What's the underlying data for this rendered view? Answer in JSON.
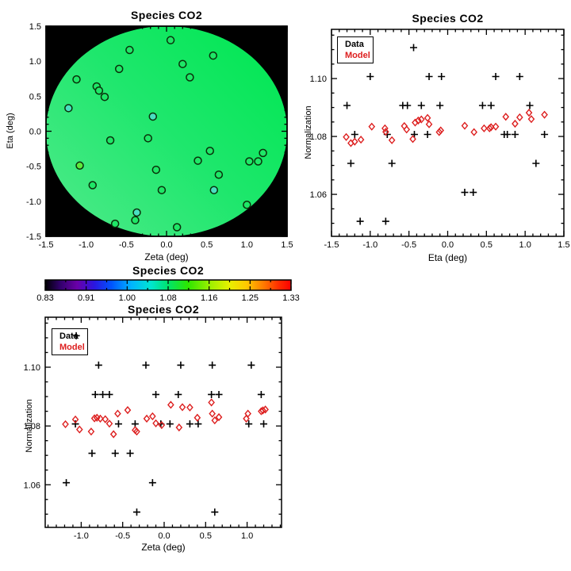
{
  "figure": {
    "background": "#ffffff"
  },
  "colors": {
    "axis": "#000000",
    "data_marker": "#000000",
    "model_marker": "#dd1f1f",
    "disk_outside": "#000000",
    "disk_gradient": [
      [
        "0%",
        "#4dea89"
      ],
      [
        "50%",
        "#1fe76d"
      ],
      [
        "100%",
        "#00e752"
      ]
    ],
    "circle_outline": "#0a300a",
    "circle_fills": {
      "green": "#1ee767",
      "cyan": "#49dfc2",
      "lime": "#5de83b"
    }
  },
  "chart_data": [
    {
      "id": "eta-vs-zeta-map",
      "type": "scatter",
      "title": "Species CO2",
      "xlabel": "Zeta (deg)",
      "ylabel": "Eta (deg)",
      "xlim": [
        -1.5,
        1.5
      ],
      "ylim": [
        -1.5,
        1.5
      ],
      "xminor": 0.1,
      "yminor": 0.1,
      "xticks": [
        {
          "v": -1.5,
          "label": "-1.5"
        },
        {
          "v": -1.0,
          "label": "-1.0"
        },
        {
          "v": -0.5,
          "label": "-0.5"
        },
        {
          "v": 0.0,
          "label": "0.0"
        },
        {
          "v": 0.5,
          "label": "0.5"
        },
        {
          "v": 1.0,
          "label": "1.0"
        },
        {
          "v": 1.5,
          "label": "1.5"
        }
      ],
      "yticks": [
        {
          "v": 1.5,
          "label": "1.5"
        },
        {
          "v": 1.0,
          "label": "1.0"
        },
        {
          "v": 0.5,
          "label": "0.5"
        },
        {
          "v": 0.0,
          "label": "0.0"
        },
        {
          "v": -0.5,
          "label": "-0.5"
        },
        {
          "v": -1.0,
          "label": "-1.0"
        },
        {
          "v": -1.5,
          "label": "-1.5"
        }
      ],
      "background_note": "black square with circular field of view filled by colormap value ~1.08 (green)",
      "points": [
        {
          "x": 0.05,
          "y": 1.3,
          "c": "green"
        },
        {
          "x": -0.46,
          "y": 1.16,
          "c": "green"
        },
        {
          "x": 0.58,
          "y": 1.08,
          "c": "green"
        },
        {
          "x": 0.2,
          "y": 0.96,
          "c": "green"
        },
        {
          "x": -0.59,
          "y": 0.89,
          "c": "green"
        },
        {
          "x": 0.29,
          "y": 0.77,
          "c": "green"
        },
        {
          "x": -1.12,
          "y": 0.74,
          "c": "green"
        },
        {
          "x": -0.87,
          "y": 0.64,
          "c": "green"
        },
        {
          "x": -0.84,
          "y": 0.58,
          "c": "green"
        },
        {
          "x": -0.77,
          "y": 0.49,
          "c": "green"
        },
        {
          "x": -1.22,
          "y": 0.33,
          "c": "cyan"
        },
        {
          "x": -0.17,
          "y": 0.21,
          "c": "cyan"
        },
        {
          "x": -0.23,
          "y": -0.1,
          "c": "green"
        },
        {
          "x": -0.7,
          "y": -0.13,
          "c": "green"
        },
        {
          "x": 0.54,
          "y": -0.28,
          "c": "green"
        },
        {
          "x": 1.2,
          "y": -0.31,
          "c": "green"
        },
        {
          "x": 1.03,
          "y": -0.43,
          "c": "green"
        },
        {
          "x": 1.14,
          "y": -0.43,
          "c": "green"
        },
        {
          "x": -1.08,
          "y": -0.49,
          "c": "lime"
        },
        {
          "x": -0.13,
          "y": -0.55,
          "c": "green"
        },
        {
          "x": 0.39,
          "y": -0.42,
          "c": "green"
        },
        {
          "x": 0.65,
          "y": -0.62,
          "c": "green"
        },
        {
          "x": -0.92,
          "y": -0.77,
          "c": "green"
        },
        {
          "x": -0.06,
          "y": -0.84,
          "c": "green"
        },
        {
          "x": 0.59,
          "y": -0.84,
          "c": "cyan"
        },
        {
          "x": 1.0,
          "y": -1.05,
          "c": "green"
        },
        {
          "x": -0.37,
          "y": -1.16,
          "c": "cyan"
        },
        {
          "x": -0.39,
          "y": -1.27,
          "c": "green"
        },
        {
          "x": -0.64,
          "y": -1.32,
          "c": "green"
        },
        {
          "x": 0.13,
          "y": -1.37,
          "c": "green"
        }
      ]
    },
    {
      "id": "normalization-vs-eta",
      "type": "scatter",
      "title": "Species CO2",
      "xlabel": "Eta (deg)",
      "ylabel": "Normalization",
      "xlim": [
        -1.5,
        1.5
      ],
      "ylim": [
        1.0455,
        1.117
      ],
      "xminor": 0.1,
      "yminor": 0.005,
      "xticks": [
        {
          "v": -1.5,
          "label": "-1.5"
        },
        {
          "v": -1.0,
          "label": "-1.0"
        },
        {
          "v": -0.5,
          "label": "-0.5"
        },
        {
          "v": 0.0,
          "label": "0.0"
        },
        {
          "v": 0.5,
          "label": "0.5"
        },
        {
          "v": 1.0,
          "label": "1.0"
        },
        {
          "v": 1.5,
          "label": "1.5"
        }
      ],
      "yticks": [
        {
          "v": 1.1,
          "label": "1.10"
        },
        {
          "v": 1.08,
          "label": "1.08"
        },
        {
          "v": 1.06,
          "label": "1.06"
        }
      ],
      "legend": [
        {
          "label": "Data",
          "color": "#000000"
        },
        {
          "label": "Model",
          "color": "#dd1f1f"
        }
      ],
      "series": [
        {
          "name": "Data",
          "marker": "plus",
          "color": "#000000",
          "points": [
            [
              -0.44,
              1.1107
            ],
            [
              -1.0,
              1.1007
            ],
            [
              -0.24,
              1.1007
            ],
            [
              -0.08,
              1.1007
            ],
            [
              0.62,
              1.1007
            ],
            [
              0.93,
              1.1007
            ],
            [
              -1.3,
              1.0907
            ],
            [
              -0.58,
              1.0907
            ],
            [
              -0.52,
              1.0907
            ],
            [
              -0.34,
              1.0907
            ],
            [
              -0.1,
              1.0907
            ],
            [
              0.45,
              1.0907
            ],
            [
              0.56,
              1.0907
            ],
            [
              1.06,
              1.0907
            ],
            [
              -1.2,
              1.0807
            ],
            [
              -0.78,
              1.0807
            ],
            [
              -0.43,
              1.0807
            ],
            [
              -0.26,
              1.0807
            ],
            [
              0.73,
              1.0807
            ],
            [
              0.77,
              1.0807
            ],
            [
              0.87,
              1.0807
            ],
            [
              1.25,
              1.0807
            ],
            [
              -1.25,
              1.0707
            ],
            [
              -0.72,
              1.0707
            ],
            [
              1.14,
              1.0707
            ],
            [
              0.22,
              1.0607
            ],
            [
              0.33,
              1.0607
            ],
            [
              -1.13,
              1.0507
            ],
            [
              -0.8,
              1.0507
            ]
          ]
        },
        {
          "name": "Model",
          "marker": "diamond",
          "color": "#dd1f1f",
          "points": [
            [
              -1.31,
              1.0798
            ],
            [
              -1.25,
              1.0777
            ],
            [
              -1.2,
              1.0782
            ],
            [
              -1.12,
              1.0789
            ],
            [
              -0.98,
              1.0834
            ],
            [
              -0.81,
              1.0828
            ],
            [
              -0.8,
              1.0816
            ],
            [
              -0.72,
              1.0787
            ],
            [
              -0.56,
              1.0836
            ],
            [
              -0.53,
              1.0824
            ],
            [
              -0.45,
              1.0791
            ],
            [
              -0.42,
              1.0848
            ],
            [
              -0.38,
              1.0855
            ],
            [
              -0.34,
              1.0859
            ],
            [
              -0.26,
              1.0864
            ],
            [
              -0.24,
              1.0842
            ],
            [
              -0.11,
              1.0815
            ],
            [
              -0.09,
              1.0821
            ],
            [
              0.22,
              1.0837
            ],
            [
              0.34,
              1.0815
            ],
            [
              0.47,
              1.0828
            ],
            [
              0.54,
              1.0828
            ],
            [
              0.56,
              1.0832
            ],
            [
              0.62,
              1.0834
            ],
            [
              0.75,
              1.0868
            ],
            [
              0.87,
              1.0844
            ],
            [
              0.93,
              1.0866
            ],
            [
              1.05,
              1.0882
            ],
            [
              1.08,
              1.086
            ],
            [
              1.25,
              1.0875
            ]
          ]
        }
      ]
    },
    {
      "id": "colorbar",
      "type": "colorbar",
      "title": "Species CO2",
      "tick_labels": [
        "0.83",
        "0.91",
        "1.00",
        "1.08",
        "1.16",
        "1.25",
        "1.33"
      ],
      "range": [
        0.83,
        1.33
      ],
      "gradient": [
        [
          "0%",
          "#000002"
        ],
        [
          "6%",
          "#30006a"
        ],
        [
          "13%",
          "#6a00a8"
        ],
        [
          "20%",
          "#2a16e0"
        ],
        [
          "27%",
          "#0055ff"
        ],
        [
          "35%",
          "#00b4ff"
        ],
        [
          "43%",
          "#00e6d0"
        ],
        [
          "50%",
          "#00e36b"
        ],
        [
          "58%",
          "#2ce600"
        ],
        [
          "67%",
          "#9cf000"
        ],
        [
          "75%",
          "#e8f000"
        ],
        [
          "82%",
          "#ffc800"
        ],
        [
          "89%",
          "#ff7800"
        ],
        [
          "95%",
          "#ff2d00"
        ],
        [
          "100%",
          "#fb0000"
        ]
      ]
    },
    {
      "id": "normalization-vs-zeta",
      "type": "scatter",
      "title": "Species CO2",
      "xlabel": "Zeta (deg)",
      "ylabel": "Normalization",
      "xlim": [
        -1.434,
        1.415
      ],
      "ylim": [
        1.0455,
        1.117
      ],
      "xminor": 0.1,
      "yminor": 0.005,
      "xticks": [
        {
          "v": -1.0,
          "label": "-1.0"
        },
        {
          "v": -0.5,
          "label": "-0.5"
        },
        {
          "v": 0.0,
          "label": "0.0"
        },
        {
          "v": 0.5,
          "label": "0.5"
        },
        {
          "v": 1.0,
          "label": "1.0"
        }
      ],
      "yticks": [
        {
          "v": 1.1,
          "label": "1.10"
        },
        {
          "v": 1.08,
          "label": "1.08"
        },
        {
          "v": 1.06,
          "label": "1.06"
        }
      ],
      "legend": [
        {
          "label": "Data",
          "color": "#000000"
        },
        {
          "label": "Model",
          "color": "#dd1f1f"
        }
      ],
      "series": [
        {
          "name": "Data",
          "marker": "plus",
          "color": "#000000",
          "points": [
            [
              -1.06,
              1.1107
            ],
            [
              -0.79,
              1.1007
            ],
            [
              -0.22,
              1.1007
            ],
            [
              0.2,
              1.1007
            ],
            [
              0.58,
              1.1007
            ],
            [
              1.05,
              1.1007
            ],
            [
              -0.83,
              1.0907
            ],
            [
              -0.74,
              1.0907
            ],
            [
              -0.66,
              1.0907
            ],
            [
              -0.1,
              1.0907
            ],
            [
              0.17,
              1.0907
            ],
            [
              0.57,
              1.0907
            ],
            [
              0.66,
              1.0907
            ],
            [
              1.17,
              1.0907
            ],
            [
              -1.07,
              1.0807
            ],
            [
              -0.55,
              1.0807
            ],
            [
              -0.35,
              1.0807
            ],
            [
              -0.04,
              1.0807
            ],
            [
              0.07,
              1.0807
            ],
            [
              0.31,
              1.0807
            ],
            [
              0.41,
              1.0807
            ],
            [
              1.02,
              1.0807
            ],
            [
              1.2,
              1.0807
            ],
            [
              -0.87,
              1.0707
            ],
            [
              -0.59,
              1.0707
            ],
            [
              -0.41,
              1.0707
            ],
            [
              -1.18,
              1.0607
            ],
            [
              -0.14,
              1.0607
            ],
            [
              -0.33,
              1.0507
            ],
            [
              0.61,
              1.0507
            ]
          ]
        },
        {
          "name": "Model",
          "marker": "diamond",
          "color": "#dd1f1f",
          "points": [
            [
              -1.19,
              1.0806
            ],
            [
              -1.07,
              1.0822
            ],
            [
              -1.02,
              1.0788
            ],
            [
              -0.88,
              1.0781
            ],
            [
              -0.84,
              1.0826
            ],
            [
              -0.81,
              1.0828
            ],
            [
              -0.77,
              1.0825
            ],
            [
              -0.71,
              1.0823
            ],
            [
              -0.66,
              1.0808
            ],
            [
              -0.61,
              1.0772
            ],
            [
              -0.56,
              1.0842
            ],
            [
              -0.44,
              1.0854
            ],
            [
              -0.35,
              1.0786
            ],
            [
              -0.33,
              1.0781
            ],
            [
              -0.21,
              1.0825
            ],
            [
              -0.14,
              1.0833
            ],
            [
              -0.1,
              1.0809
            ],
            [
              -0.03,
              1.0803
            ],
            [
              0.08,
              1.0872
            ],
            [
              0.18,
              1.0795
            ],
            [
              0.22,
              1.0864
            ],
            [
              0.31,
              1.0863
            ],
            [
              0.4,
              1.0828
            ],
            [
              0.57,
              1.088
            ],
            [
              0.58,
              1.0842
            ],
            [
              0.61,
              1.0819
            ],
            [
              0.66,
              1.083
            ],
            [
              0.99,
              1.0825
            ],
            [
              1.01,
              1.0842
            ],
            [
              1.17,
              1.085
            ],
            [
              1.19,
              1.0853
            ],
            [
              1.22,
              1.0856
            ]
          ]
        }
      ]
    }
  ]
}
